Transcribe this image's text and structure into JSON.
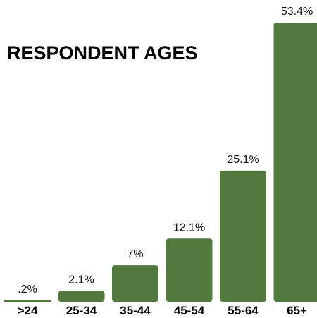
{
  "chart_data": {
    "type": "bar",
    "title": "RESPONDENT AGES",
    "xlabel": "",
    "ylabel": "",
    "categories": [
      ">24",
      "25-34",
      "35-44",
      "45-54",
      "55-64",
      "65+"
    ],
    "values": [
      0.2,
      2.1,
      7,
      12.1,
      25.1,
      53.4
    ],
    "data_labels": [
      ".2%",
      "2.1%",
      "7%",
      "12.1%",
      "25.1%",
      "53.4%"
    ],
    "ylim": [
      0,
      53.4
    ],
    "grid": false,
    "legend": "none",
    "bar_color": "#527a3f"
  }
}
